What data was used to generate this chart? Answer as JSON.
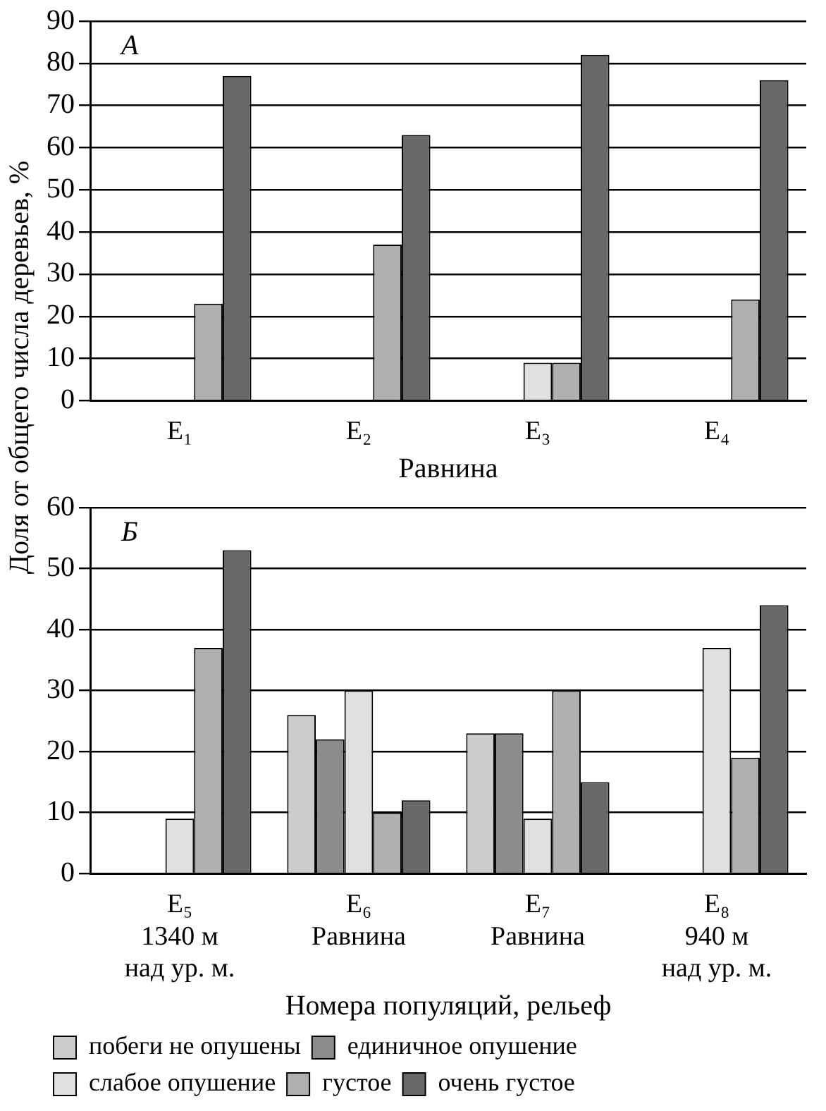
{
  "chart_data": [
    {
      "type": "bar",
      "ylabel": "Доля от общего числа деревьев, %",
      "xlabel": "Равнина",
      "annotations": [
        "А"
      ],
      "categories": [
        "Е₁",
        "Е₂",
        "Е₃",
        "Е₄"
      ],
      "ylim": [
        0,
        90
      ],
      "yticks": [
        0,
        10,
        20,
        30,
        40,
        50,
        60,
        70,
        80,
        90
      ],
      "grid": "y",
      "legend": false,
      "series": [
        {
          "color": "#cccccc",
          "values": [
            null,
            null,
            null,
            null
          ]
        },
        {
          "color": "#8c8c8c",
          "values": [
            null,
            null,
            null,
            null
          ]
        },
        {
          "color": "#e0e0e0",
          "values": [
            null,
            null,
            9,
            null
          ]
        },
        {
          "color": "#b0b0b0",
          "values": [
            23,
            37,
            9,
            24
          ]
        },
        {
          "color": "#686868",
          "values": [
            77,
            63,
            82,
            76
          ]
        }
      ]
    },
    {
      "type": "bar",
      "xlabel": "Номера популяций, рельеф",
      "annotations": [
        "Б"
      ],
      "categories": [
        "Е₅\n1340 м\nнад ур. м.",
        "Е₆\nРавнина",
        "Е₇\nРавнина",
        "Е₈\n940 м\nнад ур. м."
      ],
      "ylim": [
        0,
        60
      ],
      "yticks": [
        0,
        10,
        20,
        30,
        40,
        50,
        60
      ],
      "grid": "y",
      "legend": "bottom",
      "series": [
        {
          "name": "побеги не опушены",
          "color": "#cccccc",
          "values": [
            null,
            26,
            23,
            null
          ]
        },
        {
          "name": "единичное опушение",
          "color": "#8c8c8c",
          "values": [
            null,
            22,
            23,
            null
          ]
        },
        {
          "name": "слабое опушение",
          "color": "#e0e0e0",
          "values": [
            9,
            30,
            9,
            37
          ]
        },
        {
          "name": "густое",
          "color": "#b0b0b0",
          "values": [
            37,
            10,
            30,
            19
          ]
        },
        {
          "name": "очень густое",
          "color": "#686868",
          "values": [
            53,
            12,
            15,
            44
          ]
        }
      ]
    }
  ]
}
